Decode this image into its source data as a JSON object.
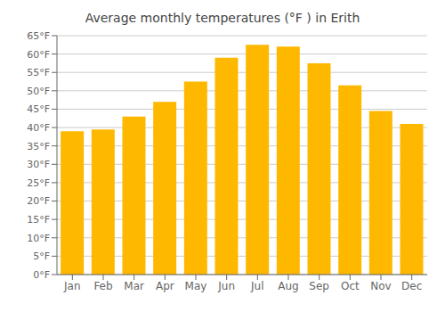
{
  "chart_data": {
    "type": "bar",
    "title": "Average monthly temperatures (°F ) in Erith",
    "categories": [
      "Jan",
      "Feb",
      "Mar",
      "Apr",
      "May",
      "Jun",
      "Jul",
      "Aug",
      "Sep",
      "Oct",
      "Nov",
      "Dec"
    ],
    "values": [
      39,
      39.5,
      43,
      47,
      52.5,
      59,
      62.5,
      62,
      57.5,
      51.5,
      44.5,
      41
    ],
    "color": "#FFB800",
    "ylim": [
      0,
      65
    ],
    "yticks": [
      {
        "value": 0,
        "label": "0°F"
      },
      {
        "value": 5,
        "label": "5°F"
      },
      {
        "value": 10,
        "label": "10°F"
      },
      {
        "value": 15,
        "label": "15°F"
      },
      {
        "value": 20,
        "label": "20°F"
      },
      {
        "value": 25,
        "label": "25°F"
      },
      {
        "value": 30,
        "label": "30°F"
      },
      {
        "value": 35,
        "label": "35°F"
      },
      {
        "value": 40,
        "label": "40°F"
      },
      {
        "value": 45,
        "label": "45°F"
      },
      {
        "value": 50,
        "label": "50°F"
      },
      {
        "value": 55,
        "label": "55°F"
      },
      {
        "value": 60,
        "label": "60°F"
      },
      {
        "value": 65,
        "label": "65°F"
      }
    ],
    "grid": true
  }
}
